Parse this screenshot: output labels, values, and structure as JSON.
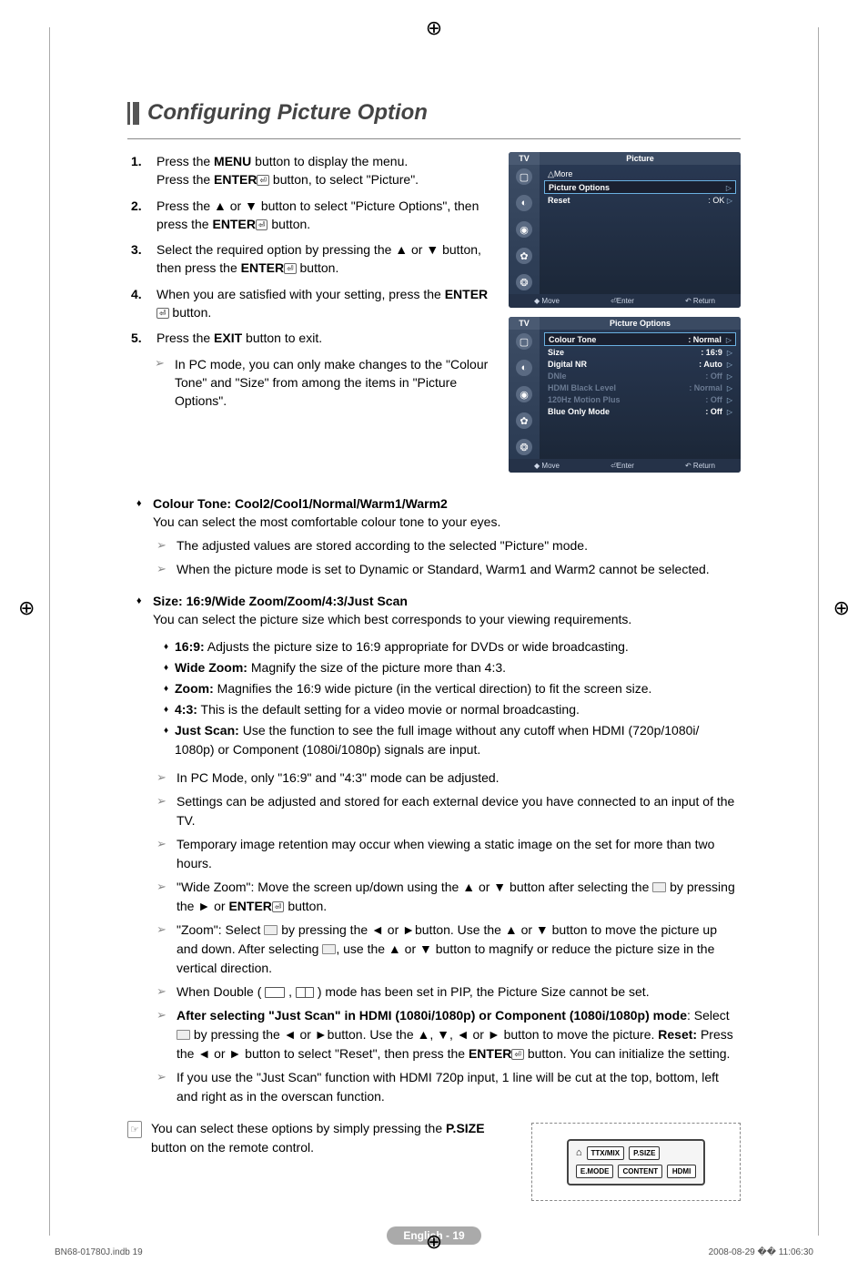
{
  "title": "Configuring Picture Option",
  "steps": [
    {
      "line1": "Press the <b>MENU</b> button to display the menu.",
      "line2": "Press the <b>ENTER</b><span class='enter-glyph'>⏎</span> button, to select \"Picture\"."
    },
    {
      "line1": "Press the ▲ or ▼ button to select \"Picture Options\", then press the <b>ENTER</b><span class='enter-glyph'>⏎</span> button."
    },
    {
      "line1": "Select the required option by pressing the ▲ or ▼ button, then press the <b>ENTER</b><span class='enter-glyph'>⏎</span> button."
    },
    {
      "line1": "When you are satisfied with your setting, press the <b>ENTER</b><span class='enter-glyph'>⏎</span> button."
    },
    {
      "line1": "Press the <b>EXIT</b> button to exit."
    }
  ],
  "step_note": "In PC mode, you can only make changes to the \"Colour Tone\" and \"Size\" from among the items in \"Picture Options\".",
  "colour_tone": {
    "head": "Colour Tone: Cool2/Cool1/Normal/Warm1/Warm2",
    "desc": "You can select the most comfortable colour tone to your eyes.",
    "note1": "The adjusted values are stored according to the selected \"Picture\" mode.",
    "note2": "When the picture mode is set to Dynamic or Standard, Warm1 and Warm2 cannot be selected."
  },
  "size": {
    "head": "Size: 16:9/Wide Zoom/Zoom/4:3/Just Scan",
    "desc": "You can select the picture size which best corresponds to your viewing requirements.",
    "items": [
      {
        "k": "16:9:",
        "v": "Adjusts the picture size to 16:9 appropriate for DVDs or wide broadcasting."
      },
      {
        "k": "Wide Zoom:",
        "v": "Magnify the size of the picture more than 4:3."
      },
      {
        "k": "Zoom:",
        "v": "Magnifies the 16:9 wide picture (in the vertical direction) to fit the screen size."
      },
      {
        "k": "4:3:",
        "v": "This is the default setting for a video movie or normal broadcasting."
      },
      {
        "k": "Just Scan:",
        "v": "Use the function to see the full image without any cutoff when HDMI (720p/1080i/ 1080p) or Component (1080i/1080p) signals are input."
      }
    ],
    "notes": [
      "In PC Mode, only \"16:9\" and \"4:3\" mode can be adjusted.",
      "Settings can be adjusted and stored for each external device you have connected to an input of the TV.",
      "Temporary image retention may occur when viewing a static image on the set for more than two hours.",
      "\"Wide Zoom\": Move the screen up/down using the ▲ or ▼ button after selecting the <span class='screen-glyph'></span> by pressing the ► or <b>ENTER</b><span class='enter-glyph'>⏎</span> button.",
      "\"Zoom\": Select <span class='screen-glyph'></span> by pressing the ◄ or ►button. Use the ▲ or ▼ button to move the picture up and down. After selecting <span class='screen-glyph'></span>, use the ▲ or ▼ button to magnify or reduce the picture size in the vertical direction.",
      "When Double ( <span class='small-box'></span> , <span class='small-box half'></span> ) mode has been set in PIP, the Picture Size cannot be set.",
      "<b>After selecting \"Just Scan\" in HDMI (1080i/1080p) or Component (1080i/1080p) mode</b>: Select <span class='screen-glyph'></span> by pressing the ◄ or ►button. Use the ▲, ▼, ◄ or ► button to move the picture. <b>Reset:</b> Press the ◄ or ► button to select \"Reset\", then press the <b>ENTER</b><span class='enter-glyph'>⏎</span> button. You can initialize the setting.",
      "If you use the \"Just Scan\" function with HDMI 720p input, 1 line will be cut at the top, bottom, left and right as in the overscan function."
    ]
  },
  "psize_note": "You can select these options by simply pressing the <b>P.SIZE</b> button on the remote control.",
  "osd1": {
    "tv": "TV",
    "title": "Picture",
    "more": "△More",
    "rows": [
      {
        "l": "Picture Options",
        "r": "",
        "sel": true
      },
      {
        "l": "Reset",
        "r": ": OK"
      }
    ],
    "footer": {
      "move": "◆ Move",
      "enter": "⏎Enter",
      "return": "↶ Return"
    }
  },
  "osd2": {
    "tv": "TV",
    "title": "Picture Options",
    "rows": [
      {
        "l": "Colour Tone",
        "r": ": Normal",
        "sel": true
      },
      {
        "l": "Size",
        "r": ": 16:9"
      },
      {
        "l": "Digital NR",
        "r": ": Auto"
      },
      {
        "l": "DNIe",
        "r": ": Off",
        "dim": true
      },
      {
        "l": "HDMI Black Level",
        "r": ": Normal",
        "dim": true
      },
      {
        "l": "120Hz Motion Plus",
        "r": ": Off",
        "dim": true
      },
      {
        "l": "Blue Only Mode",
        "r": ": Off"
      }
    ],
    "footer": {
      "move": "◆ Move",
      "enter": "⏎Enter",
      "return": "↶ Return"
    }
  },
  "remote": {
    "row1": [
      "TTX/MIX",
      "P.SIZE"
    ],
    "row2": [
      "E.MODE",
      "CONTENT",
      "HDMI"
    ]
  },
  "page_label": "English - 19",
  "footer": {
    "left": "BN68-01780J.indb   19",
    "right": "2008-08-29   �� 11:06:30"
  }
}
